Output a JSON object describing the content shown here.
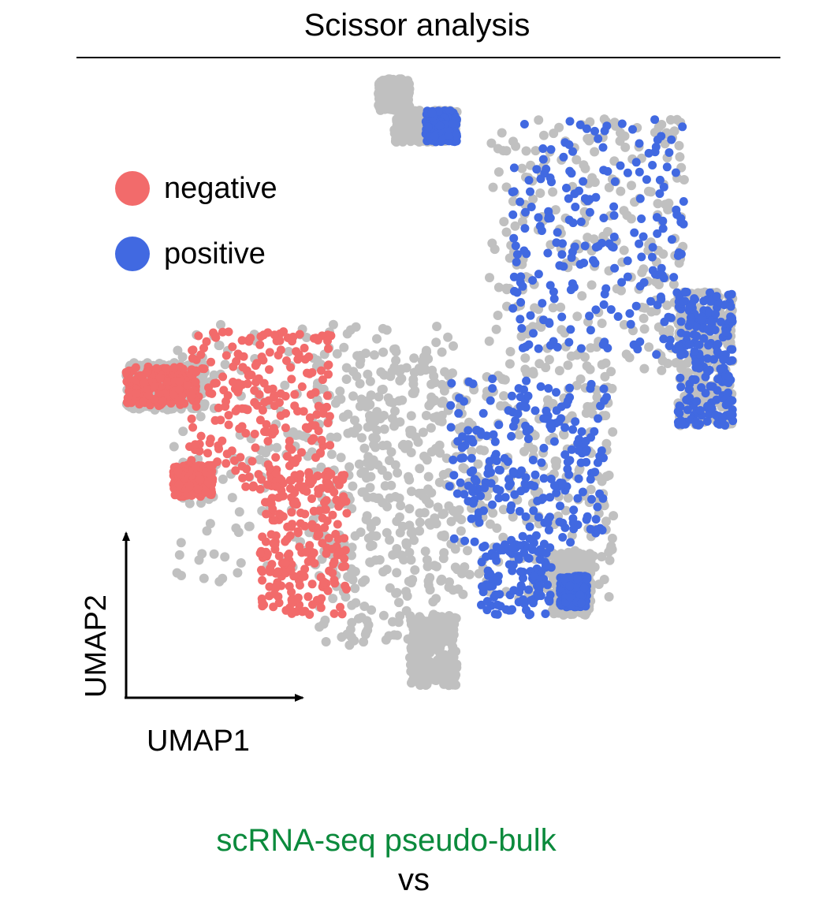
{
  "title": "Scissor analysis",
  "chart_data": {
    "type": "scatter",
    "xlabel": "UMAP1",
    "ylabel": "UMAP2",
    "grid": false,
    "legend_position": "top-left",
    "legend": [
      {
        "label": "negative",
        "color": "#f26b6b"
      },
      {
        "label": "positive",
        "color": "#4169e1"
      }
    ],
    "background_color": "#c0c0c0"
  },
  "caption_line1": "scRNA-seq pseudo-bulk",
  "caption_line2": "vs"
}
